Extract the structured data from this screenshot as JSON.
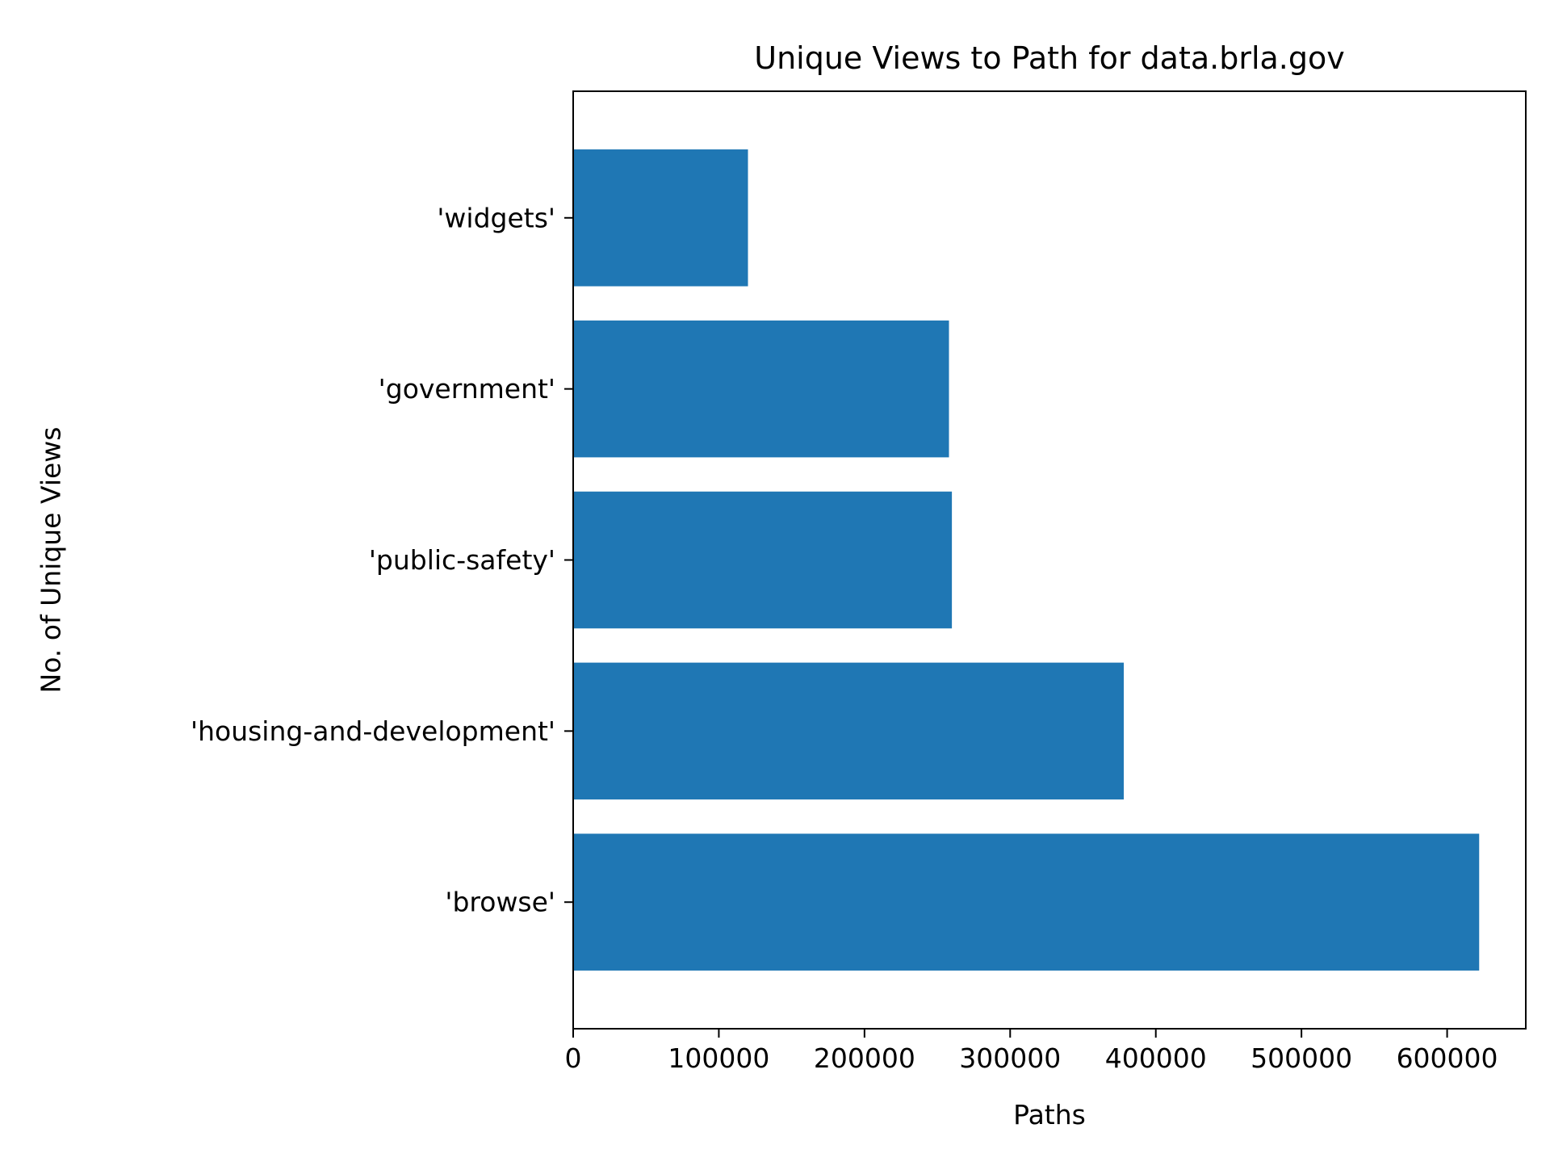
{
  "chart_data": {
    "type": "bar",
    "orientation": "horizontal",
    "title": "Unique Views to Path for data.brla.gov",
    "xlabel": "Paths",
    "ylabel": "No. of Unique Views",
    "categories": [
      "'widgets'",
      "'government'",
      "'public-safety'",
      "'housing-and-development'",
      "'browse'"
    ],
    "values": [
      120000,
      258000,
      260000,
      378000,
      622000
    ],
    "xlim": [
      0,
      654000
    ],
    "xticks": [
      0,
      100000,
      200000,
      300000,
      400000,
      500000,
      600000
    ],
    "xtick_labels": [
      "0",
      "100000",
      "200000",
      "300000",
      "400000",
      "500000",
      "600000"
    ],
    "grid": false,
    "legend": "none",
    "bar_color": "#1f77b4"
  }
}
